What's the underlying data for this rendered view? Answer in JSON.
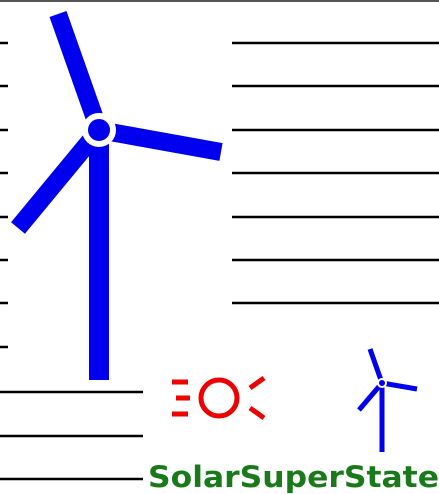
{
  "logo": {
    "text": "SolarSuperState"
  }
}
